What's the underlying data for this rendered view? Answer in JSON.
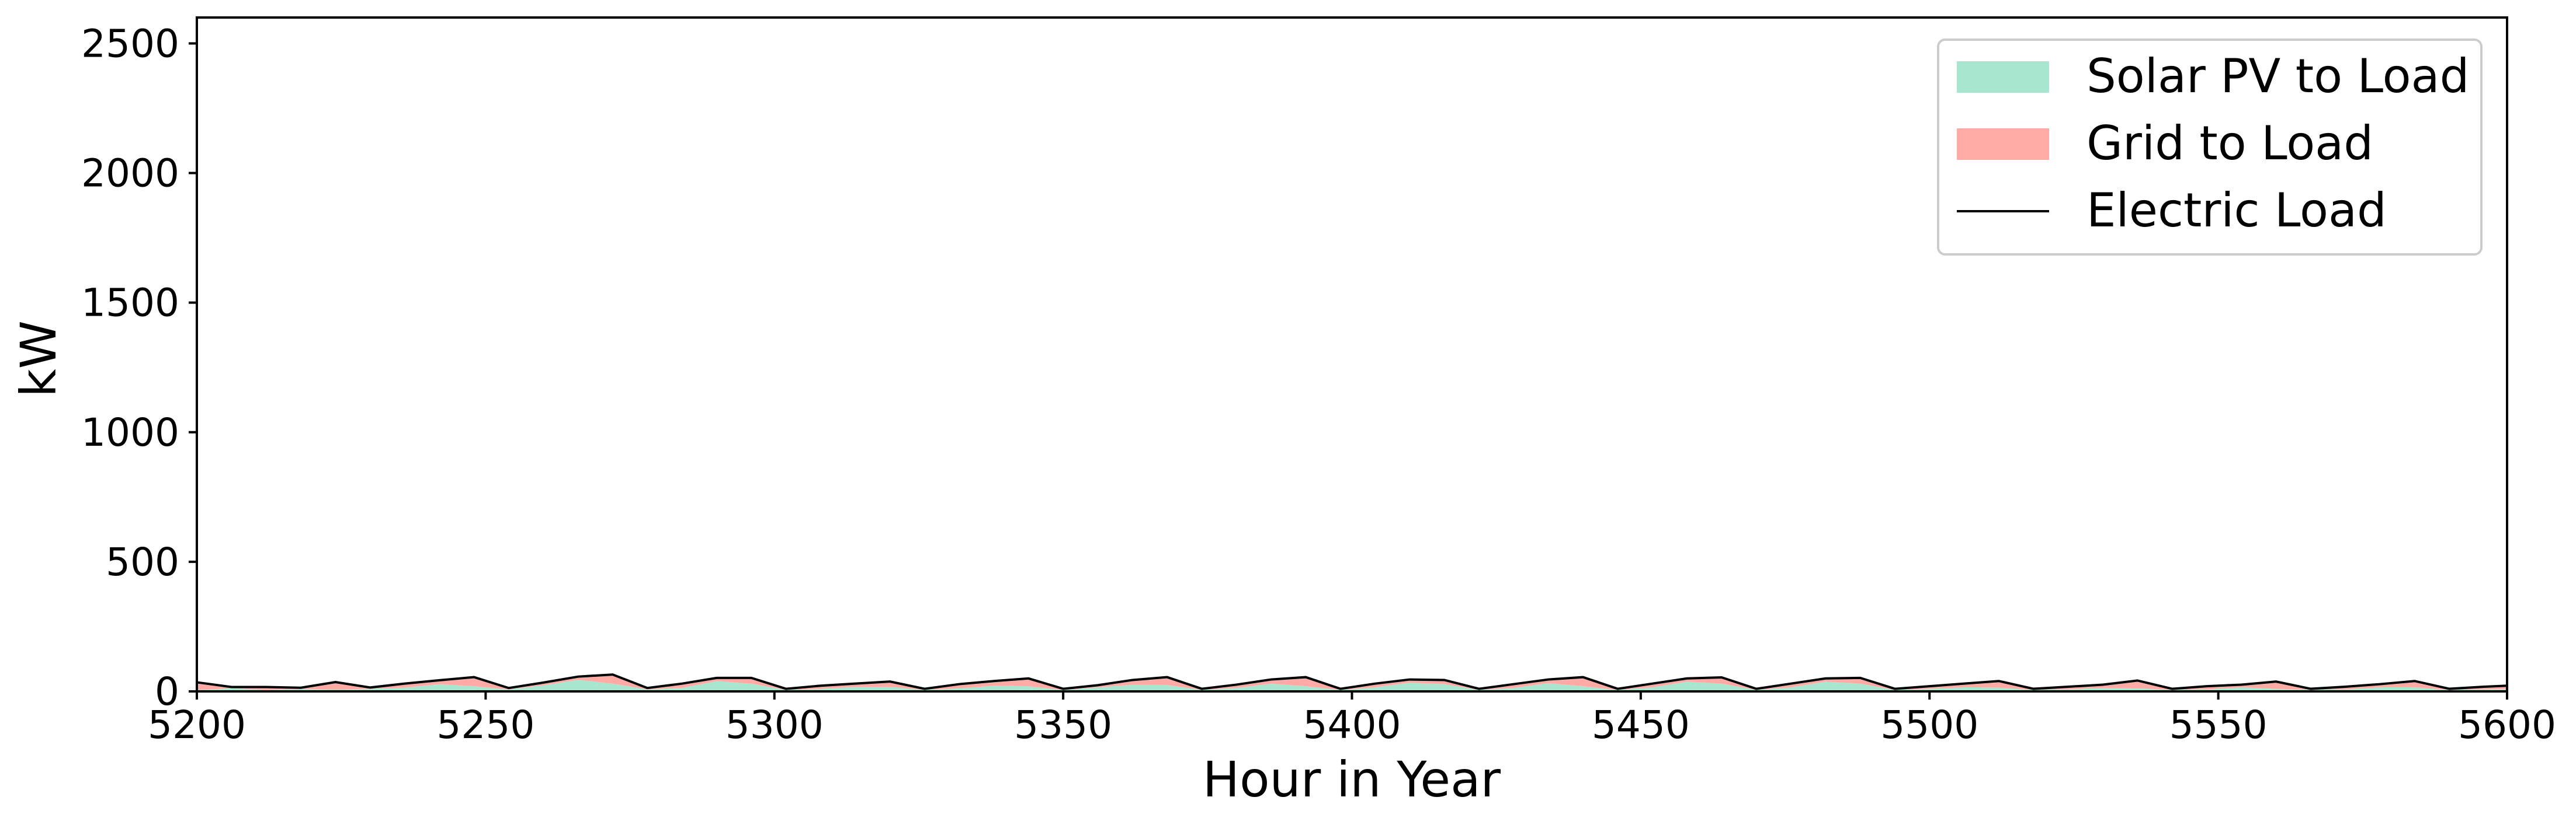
{
  "chart_data": {
    "type": "area",
    "title": "",
    "xlabel": "Hour in Year",
    "ylabel": "kW",
    "xlim": [
      5200,
      5600
    ],
    "ylim": [
      0,
      2600
    ],
    "xticks": [
      "5200",
      "5250",
      "5300",
      "5350",
      "5400",
      "5450",
      "5500",
      "5550",
      "5600"
    ],
    "yticks": [
      "0",
      "500",
      "1000",
      "1500",
      "2000",
      "2500"
    ],
    "grid": false,
    "legend_position": "top-right",
    "x": [
      5200,
      5206,
      5212,
      5218,
      5224,
      5230,
      5236,
      5242,
      5248,
      5254,
      5260,
      5266,
      5272,
      5278,
      5284,
      5290,
      5296,
      5302,
      5308,
      5314,
      5320,
      5326,
      5332,
      5338,
      5344,
      5350,
      5356,
      5362,
      5368,
      5374,
      5380,
      5386,
      5392,
      5398,
      5404,
      5410,
      5416,
      5422,
      5428,
      5434,
      5440,
      5446,
      5452,
      5458,
      5464,
      5470,
      5476,
      5482,
      5488,
      5494,
      5500,
      5506,
      5512,
      5518,
      5524,
      5530,
      5536,
      5542,
      5548,
      5554,
      5560,
      5566,
      5572,
      5578,
      5584,
      5590,
      5596,
      5600
    ],
    "series": [
      {
        "name": "Solar PV to Load",
        "color": "#a8e6cf",
        "values": [
          5,
          12,
          5,
          10,
          6,
          10,
          15,
          28,
          20,
          8,
          24,
          45,
          30,
          8,
          14,
          40,
          30,
          6,
          10,
          18,
          18,
          6,
          12,
          22,
          20,
          6,
          16,
          26,
          25,
          6,
          14,
          30,
          20,
          6,
          16,
          34,
          28,
          6,
          14,
          32,
          20,
          6,
          16,
          38,
          30,
          6,
          16,
          38,
          30,
          6,
          10,
          16,
          15,
          6,
          8,
          14,
          12,
          6,
          8,
          16,
          10,
          6,
          8,
          16,
          16,
          6,
          8,
          10
        ]
      },
      {
        "name": "Grid to Load",
        "color": "#ffaaa5",
        "values": [
          30,
          5,
          12,
          4,
          30,
          5,
          15,
          15,
          35,
          5,
          10,
          12,
          35,
          5,
          16,
          12,
          22,
          4,
          12,
          12,
          20,
          4,
          16,
          18,
          30,
          4,
          8,
          18,
          30,
          4,
          12,
          16,
          35,
          4,
          14,
          12,
          16,
          4,
          14,
          14,
          35,
          4,
          14,
          12,
          24,
          4,
          14,
          12,
          22,
          4,
          10,
          14,
          25,
          4,
          10,
          12,
          30,
          4,
          12,
          10,
          28,
          4,
          10,
          12,
          24,
          4,
          10,
          12
        ]
      },
      {
        "name": "Electric Load",
        "color": "#000000",
        "values": [
          35,
          17,
          17,
          14,
          36,
          15,
          30,
          43,
          55,
          13,
          34,
          57,
          65,
          13,
          30,
          52,
          52,
          10,
          22,
          30,
          38,
          10,
          28,
          40,
          50,
          10,
          24,
          44,
          55,
          10,
          26,
          46,
          55,
          10,
          30,
          46,
          44,
          10,
          28,
          46,
          55,
          10,
          30,
          50,
          54,
          10,
          30,
          50,
          52,
          10,
          20,
          30,
          40,
          10,
          18,
          26,
          42,
          10,
          20,
          26,
          38,
          10,
          18,
          28,
          40,
          10,
          18,
          22
        ]
      }
    ]
  }
}
